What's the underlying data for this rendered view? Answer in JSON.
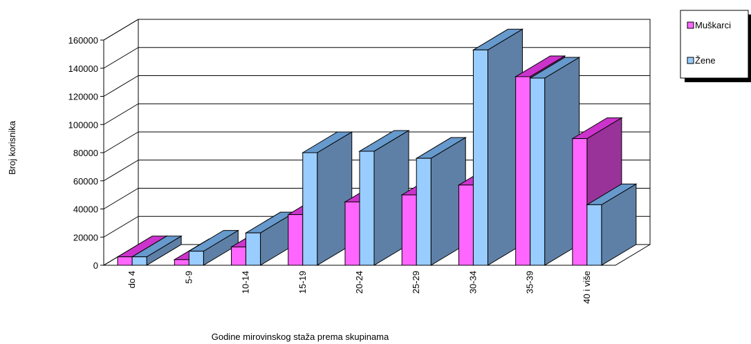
{
  "chart_data": {
    "type": "bar",
    "subtype": "3d-clustered-column",
    "title": "",
    "xlabel": "Godine mirovinskog staža prema skupinama",
    "ylabel": "Broj korisnika",
    "categories": [
      "do 4",
      "5-9",
      "10-14",
      "15-19",
      "20-24",
      "25-29",
      "30-34",
      "35-39",
      "40 i više"
    ],
    "series": [
      {
        "name": "Muškarci",
        "color": "#ff66ff",
        "values": [
          6000,
          4000,
          13000,
          36000,
          45000,
          50000,
          57000,
          134000,
          90000
        ]
      },
      {
        "name": "Žene",
        "color": "#99ccff",
        "values": [
          6000,
          10000,
          23000,
          80000,
          81000,
          76000,
          153000,
          133000,
          43000
        ]
      }
    ],
    "ylim": [
      0,
      160000
    ],
    "yticks": [
      0,
      20000,
      40000,
      60000,
      80000,
      100000,
      120000,
      140000,
      160000
    ],
    "ytick_labels": [
      "0",
      "20000",
      "40000",
      "60000",
      "80000",
      "100000",
      "120000",
      "140000",
      "160000"
    ],
    "grid": true,
    "legend": {
      "position": "top-right",
      "items": [
        "Muškarci",
        "Žene"
      ]
    }
  }
}
